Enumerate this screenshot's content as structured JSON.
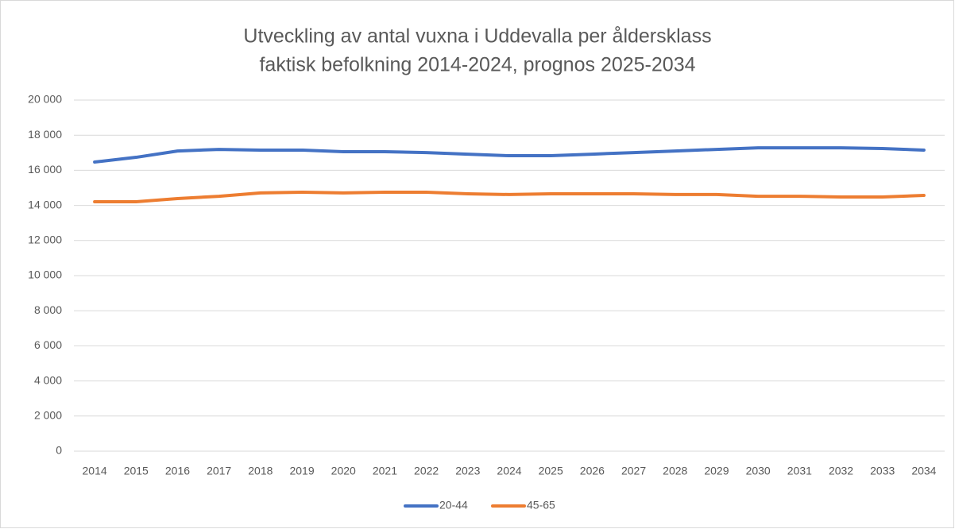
{
  "chart_data": {
    "type": "line",
    "title": "Utveckling av antal vuxna i Uddevalla per åldersklass",
    "subtitle": "faktisk befolkning 2014-2024, prognos 2025-2034",
    "categories": [
      "2014",
      "2015",
      "2016",
      "2017",
      "2018",
      "2019",
      "2020",
      "2021",
      "2022",
      "2023",
      "2024",
      "2025",
      "2026",
      "2027",
      "2028",
      "2029",
      "2030",
      "2031",
      "2032",
      "2033",
      "2034"
    ],
    "series": [
      {
        "name": "20-44",
        "color": "#4472c4",
        "values": [
          16470,
          16740,
          17100,
          17190,
          17150,
          17150,
          17060,
          17060,
          17010,
          16920,
          16830,
          16830,
          16920,
          17010,
          17100,
          17190,
          17280,
          17280,
          17280,
          17240,
          17150
        ]
      },
      {
        "name": "45-65",
        "color": "#ed7d31",
        "values": [
          14210,
          14210,
          14390,
          14520,
          14710,
          14750,
          14710,
          14750,
          14750,
          14660,
          14620,
          14660,
          14660,
          14660,
          14620,
          14620,
          14520,
          14520,
          14480,
          14480,
          14570
        ]
      }
    ],
    "ylim": [
      0,
      20000
    ],
    "yticks": [
      0,
      {
        "value": 2000,
        "label": "2 000"
      },
      {
        "value": 4000,
        "label": "4 000"
      },
      {
        "value": 6000,
        "label": "6 000"
      },
      {
        "value": 8000,
        "label": "8 000"
      },
      {
        "value": 10000,
        "label": "10 000"
      },
      {
        "value": 12000,
        "label": "12 000"
      },
      {
        "value": 14000,
        "label": "14 000"
      },
      {
        "value": 16000,
        "label": "16 000"
      },
      {
        "value": 18000,
        "label": "18 000"
      },
      {
        "value": 20000,
        "label": "20 000"
      }
    ],
    "grid": true,
    "legend": "bottom"
  }
}
